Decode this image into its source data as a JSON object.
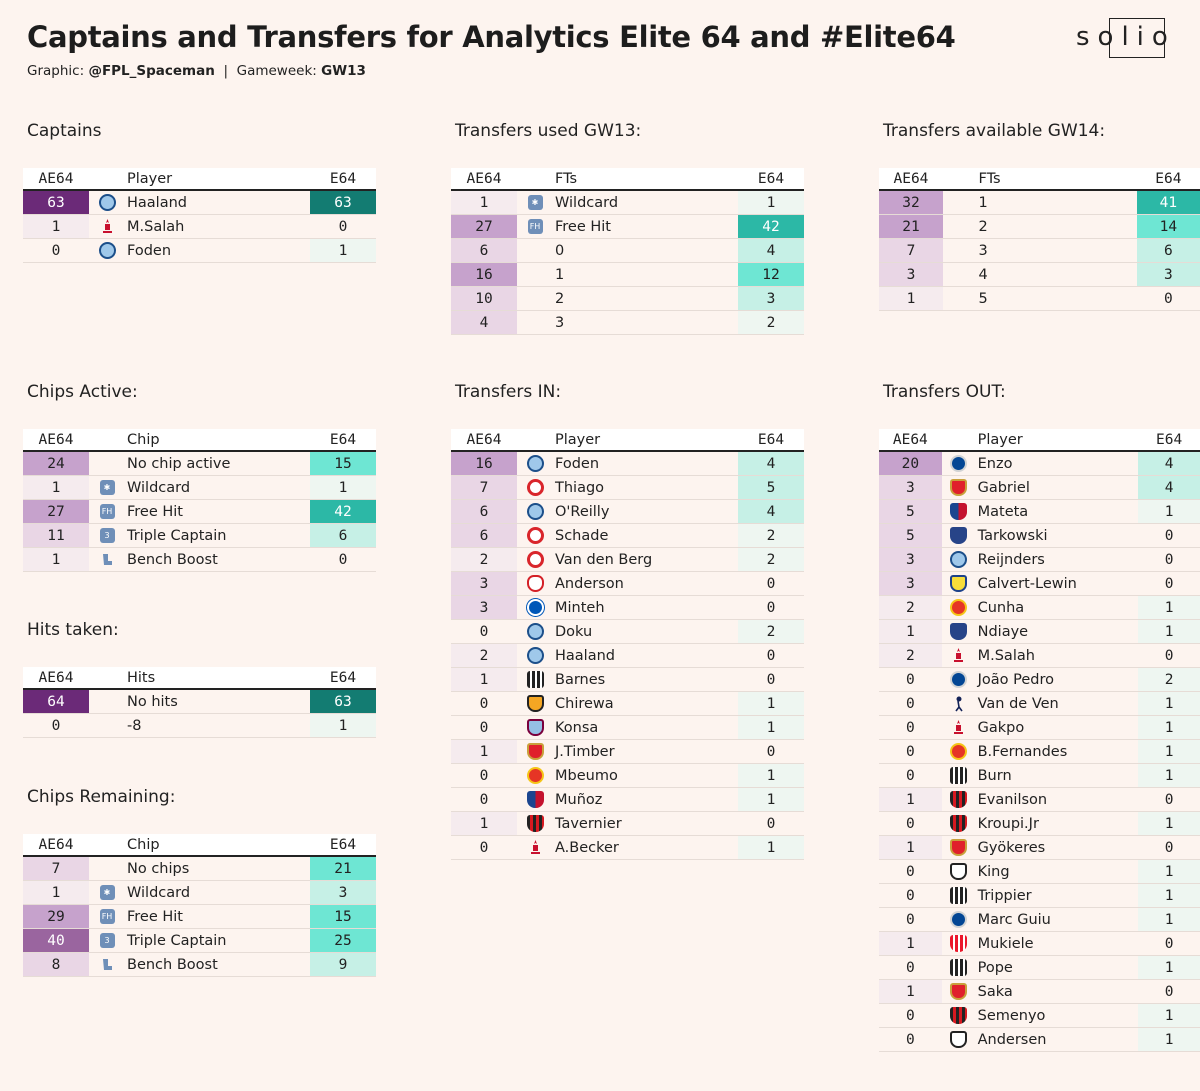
{
  "header": {
    "title": "Captains and Transfers for Analytics Elite 64 and #Elite64",
    "subtitle_graphic_label": "Graphic:",
    "subtitle_author": "@FPL_Spaceman",
    "subtitle_sep": "|",
    "subtitle_gw_label": "Gameweek:",
    "subtitle_gw": "GW13",
    "logo": "solio"
  },
  "colors": {
    "background": "#fdf4ef",
    "ae_scale": [
      "#f5ebee",
      "#e9d6e5",
      "#c6a2cc",
      "#9a659f",
      "#6b2a78"
    ],
    "e_scale": [
      "#eef6f1",
      "#c6f0e6",
      "#6ee6d3",
      "#2cb8a6",
      "#137c72"
    ]
  },
  "tables": [
    {
      "title": "Captains",
      "headers": {
        "ae": "AE64",
        "name": "Player",
        "e": "E64"
      },
      "rows": [
        {
          "ae": "63",
          "icon": "man-city-crest-icon",
          "name": "Haaland",
          "e": "63"
        },
        {
          "ae": "1",
          "icon": "liverpool-crest-icon",
          "name": "M.Salah",
          "e": "0"
        },
        {
          "ae": "0",
          "icon": "man-city-crest-icon",
          "name": "Foden",
          "e": "1"
        }
      ]
    },
    {
      "title": "Transfers used GW13:",
      "headers": {
        "ae": "AE64",
        "name": "FTs",
        "e": "E64"
      },
      "rows": [
        {
          "ae": "1",
          "icon": "wildcard-chip-icon",
          "name": "Wildcard",
          "e": "1"
        },
        {
          "ae": "27",
          "icon": "free-hit-chip-icon",
          "name": "Free Hit",
          "e": "42"
        },
        {
          "ae": "6",
          "icon": "",
          "name": "0",
          "e": "4"
        },
        {
          "ae": "16",
          "icon": "",
          "name": "1",
          "e": "12"
        },
        {
          "ae": "10",
          "icon": "",
          "name": "2",
          "e": "3"
        },
        {
          "ae": "4",
          "icon": "",
          "name": "3",
          "e": "2"
        }
      ]
    },
    {
      "title": "Transfers available GW14:",
      "headers": {
        "ae": "AE64",
        "name": "FTs",
        "e": "E64"
      },
      "rows": [
        {
          "ae": "32",
          "icon": "",
          "name": "1",
          "e": "41"
        },
        {
          "ae": "21",
          "icon": "",
          "name": "2",
          "e": "14"
        },
        {
          "ae": "7",
          "icon": "",
          "name": "3",
          "e": "6"
        },
        {
          "ae": "3",
          "icon": "",
          "name": "4",
          "e": "3"
        },
        {
          "ae": "1",
          "icon": "",
          "name": "5",
          "e": "0"
        }
      ]
    },
    {
      "title": "Chips Active:",
      "headers": {
        "ae": "AE64",
        "name": "Chip",
        "e": "E64"
      },
      "rows": [
        {
          "ae": "24",
          "icon": "",
          "name": "No chip active",
          "e": "15"
        },
        {
          "ae": "1",
          "icon": "wildcard-chip-icon",
          "name": "Wildcard",
          "e": "1"
        },
        {
          "ae": "27",
          "icon": "free-hit-chip-icon",
          "name": "Free Hit",
          "e": "42"
        },
        {
          "ae": "11",
          "icon": "triple-captain-chip-icon",
          "name": "Triple Captain",
          "e": "6"
        },
        {
          "ae": "1",
          "icon": "bench-boost-chip-icon",
          "name": "Bench Boost",
          "e": "0"
        }
      ]
    },
    {
      "title": "Transfers IN:",
      "headers": {
        "ae": "AE64",
        "name": "Player",
        "e": "E64"
      },
      "rows": [
        {
          "ae": "16",
          "icon": "man-city-crest-icon",
          "name": "Foden",
          "e": "4"
        },
        {
          "ae": "7",
          "icon": "brentford-crest-icon",
          "name": "Thiago",
          "e": "5"
        },
        {
          "ae": "6",
          "icon": "man-city-crest-icon",
          "name": "O'Reilly",
          "e": "4"
        },
        {
          "ae": "6",
          "icon": "brentford-crest-icon",
          "name": "Schade",
          "e": "2"
        },
        {
          "ae": "2",
          "icon": "brentford-crest-icon",
          "name": "Van den Berg",
          "e": "2"
        },
        {
          "ae": "3",
          "icon": "nottm-forest-crest-icon",
          "name": "Anderson",
          "e": "0"
        },
        {
          "ae": "3",
          "icon": "brighton-crest-icon",
          "name": "Minteh",
          "e": "0"
        },
        {
          "ae": "0",
          "icon": "man-city-crest-icon",
          "name": "Doku",
          "e": "2"
        },
        {
          "ae": "2",
          "icon": "man-city-crest-icon",
          "name": "Haaland",
          "e": "0"
        },
        {
          "ae": "1",
          "icon": "newcastle-crest-icon",
          "name": "Barnes",
          "e": "0"
        },
        {
          "ae": "0",
          "icon": "wolves-crest-icon",
          "name": "Chirewa",
          "e": "1"
        },
        {
          "ae": "0",
          "icon": "aston-villa-crest-icon",
          "name": "Konsa",
          "e": "1"
        },
        {
          "ae": "1",
          "icon": "arsenal-crest-icon",
          "name": "J.Timber",
          "e": "0"
        },
        {
          "ae": "0",
          "icon": "man-utd-crest-icon",
          "name": "Mbeumo",
          "e": "1"
        },
        {
          "ae": "0",
          "icon": "crystal-palace-crest-icon",
          "name": "Muñoz",
          "e": "1"
        },
        {
          "ae": "1",
          "icon": "bournemouth-crest-icon",
          "name": "Tavernier",
          "e": "0"
        },
        {
          "ae": "0",
          "icon": "liverpool-crest-icon",
          "name": "A.Becker",
          "e": "1"
        }
      ]
    },
    {
      "title": "Transfers OUT:",
      "headers": {
        "ae": "AE64",
        "name": "Player",
        "e": "E64"
      },
      "rows": [
        {
          "ae": "20",
          "icon": "chelsea-crest-icon",
          "name": "Enzo",
          "e": "4"
        },
        {
          "ae": "3",
          "icon": "arsenal-crest-icon",
          "name": "Gabriel",
          "e": "4"
        },
        {
          "ae": "5",
          "icon": "crystal-palace-crest-icon",
          "name": "Mateta",
          "e": "1"
        },
        {
          "ae": "5",
          "icon": "everton-crest-icon",
          "name": "Tarkowski",
          "e": "0"
        },
        {
          "ae": "3",
          "icon": "man-city-crest-icon",
          "name": "Reijnders",
          "e": "0"
        },
        {
          "ae": "3",
          "icon": "leeds-crest-icon",
          "name": "Calvert-Lewin",
          "e": "0"
        },
        {
          "ae": "2",
          "icon": "man-utd-crest-icon",
          "name": "Cunha",
          "e": "1"
        },
        {
          "ae": "1",
          "icon": "everton-crest-icon",
          "name": "Ndiaye",
          "e": "1"
        },
        {
          "ae": "2",
          "icon": "liverpool-crest-icon",
          "name": "M.Salah",
          "e": "0"
        },
        {
          "ae": "0",
          "icon": "chelsea-crest-icon",
          "name": "João Pedro",
          "e": "2"
        },
        {
          "ae": "0",
          "icon": "tottenham-crest-icon",
          "name": "Van de Ven",
          "e": "1"
        },
        {
          "ae": "0",
          "icon": "liverpool-crest-icon",
          "name": "Gakpo",
          "e": "1"
        },
        {
          "ae": "0",
          "icon": "man-utd-crest-icon",
          "name": "B.Fernandes",
          "e": "1"
        },
        {
          "ae": "0",
          "icon": "newcastle-crest-icon",
          "name": "Burn",
          "e": "1"
        },
        {
          "ae": "1",
          "icon": "bournemouth-crest-icon",
          "name": "Evanilson",
          "e": "0"
        },
        {
          "ae": "0",
          "icon": "bournemouth-crest-icon",
          "name": "Kroupi.Jr",
          "e": "1"
        },
        {
          "ae": "1",
          "icon": "arsenal-crest-icon",
          "name": "Gyökeres",
          "e": "0"
        },
        {
          "ae": "0",
          "icon": "fulham-crest-icon",
          "name": "King",
          "e": "1"
        },
        {
          "ae": "0",
          "icon": "newcastle-crest-icon",
          "name": "Trippier",
          "e": "1"
        },
        {
          "ae": "0",
          "icon": "chelsea-crest-icon",
          "name": "Marc Guiu",
          "e": "1"
        },
        {
          "ae": "1",
          "icon": "sunderland-crest-icon",
          "name": "Mukiele",
          "e": "0"
        },
        {
          "ae": "0",
          "icon": "newcastle-crest-icon",
          "name": "Pope",
          "e": "1"
        },
        {
          "ae": "1",
          "icon": "arsenal-crest-icon",
          "name": "Saka",
          "e": "0"
        },
        {
          "ae": "0",
          "icon": "bournemouth-crest-icon",
          "name": "Semenyo",
          "e": "1"
        },
        {
          "ae": "0",
          "icon": "fulham-crest-icon",
          "name": "Andersen",
          "e": "1"
        }
      ]
    },
    {
      "title": "Hits taken:",
      "headers": {
        "ae": "AE64",
        "name": "Hits",
        "e": "E64"
      },
      "rows": [
        {
          "ae": "64",
          "icon": "",
          "name": "No hits",
          "e": "63"
        },
        {
          "ae": "0",
          "icon": "",
          "name": "-8",
          "e": "1"
        }
      ]
    },
    {
      "title": "Chips Remaining:",
      "headers": {
        "ae": "AE64",
        "name": "Chip",
        "e": "E64"
      },
      "rows": [
        {
          "ae": "7",
          "icon": "",
          "name": "No chips",
          "e": "21"
        },
        {
          "ae": "1",
          "icon": "wildcard-chip-icon",
          "name": "Wildcard",
          "e": "3"
        },
        {
          "ae": "29",
          "icon": "free-hit-chip-icon",
          "name": "Free Hit",
          "e": "15"
        },
        {
          "ae": "40",
          "icon": "triple-captain-chip-icon",
          "name": "Triple Captain",
          "e": "25"
        },
        {
          "ae": "8",
          "icon": "bench-boost-chip-icon",
          "name": "Bench Boost",
          "e": "9"
        }
      ]
    }
  ]
}
